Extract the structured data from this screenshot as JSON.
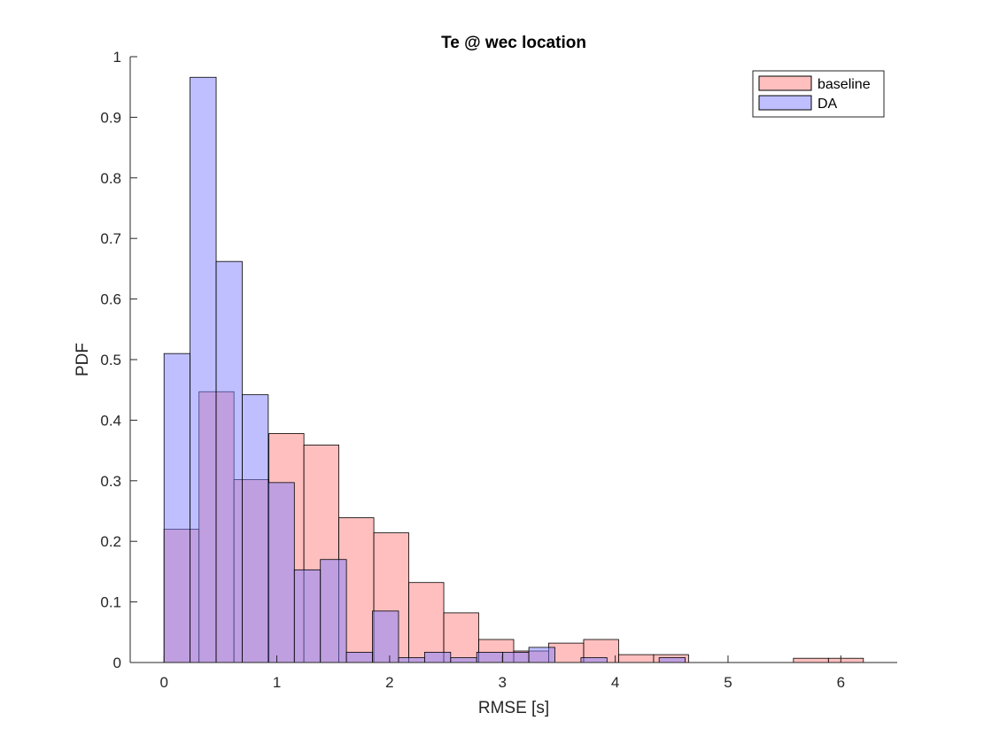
{
  "chart_data": {
    "type": "bar",
    "title": "Te @ wec location",
    "xlabel": "RMSE [s]",
    "ylabel": "PDF",
    "xlim": [
      -0.3,
      6.5
    ],
    "ylim": [
      0,
      1
    ],
    "xticks": [
      0,
      1,
      2,
      3,
      4,
      5,
      6
    ],
    "yticks": [
      0,
      0.1,
      0.2,
      0.3,
      0.4,
      0.5,
      0.6,
      0.7,
      0.8,
      0.9,
      1
    ],
    "grid": false,
    "legend_position": "top-right",
    "series": [
      {
        "name": "baseline",
        "color": "#ff8080",
        "opacity": 0.5,
        "bins": [
          {
            "x0": 0.0,
            "x1": 0.31,
            "value": 0.22
          },
          {
            "x0": 0.31,
            "x1": 0.62,
            "value": 0.447
          },
          {
            "x0": 0.62,
            "x1": 0.93,
            "value": 0.302
          },
          {
            "x0": 0.93,
            "x1": 1.24,
            "value": 0.378
          },
          {
            "x0": 1.24,
            "x1": 1.55,
            "value": 0.359
          },
          {
            "x0": 1.55,
            "x1": 1.86,
            "value": 0.239
          },
          {
            "x0": 1.86,
            "x1": 2.17,
            "value": 0.214
          },
          {
            "x0": 2.17,
            "x1": 2.48,
            "value": 0.132
          },
          {
            "x0": 2.48,
            "x1": 2.79,
            "value": 0.082
          },
          {
            "x0": 2.79,
            "x1": 3.1,
            "value": 0.038
          },
          {
            "x0": 3.1,
            "x1": 3.41,
            "value": 0.019
          },
          {
            "x0": 3.41,
            "x1": 3.72,
            "value": 0.032
          },
          {
            "x0": 3.72,
            "x1": 4.03,
            "value": 0.038
          },
          {
            "x0": 4.03,
            "x1": 4.34,
            "value": 0.013
          },
          {
            "x0": 4.34,
            "x1": 4.65,
            "value": 0.013
          },
          {
            "x0": 5.58,
            "x1": 5.89,
            "value": 0.007
          },
          {
            "x0": 5.89,
            "x1": 6.2,
            "value": 0.007
          }
        ]
      },
      {
        "name": "DA",
        "color": "#8080ff",
        "opacity": 0.5,
        "bins": [
          {
            "x0": 0.0,
            "x1": 0.231,
            "value": 0.51
          },
          {
            "x0": 0.231,
            "x1": 0.462,
            "value": 0.966
          },
          {
            "x0": 0.462,
            "x1": 0.693,
            "value": 0.662
          },
          {
            "x0": 0.693,
            "x1": 0.924,
            "value": 0.442
          },
          {
            "x0": 0.924,
            "x1": 1.155,
            "value": 0.297
          },
          {
            "x0": 1.155,
            "x1": 1.386,
            "value": 0.153
          },
          {
            "x0": 1.386,
            "x1": 1.617,
            "value": 0.17
          },
          {
            "x0": 1.617,
            "x1": 1.848,
            "value": 0.017
          },
          {
            "x0": 1.848,
            "x1": 2.079,
            "value": 0.085
          },
          {
            "x0": 2.079,
            "x1": 2.31,
            "value": 0.008
          },
          {
            "x0": 2.31,
            "x1": 2.541,
            "value": 0.017
          },
          {
            "x0": 2.541,
            "x1": 2.772,
            "value": 0.008
          },
          {
            "x0": 2.772,
            "x1": 3.003,
            "value": 0.017
          },
          {
            "x0": 3.003,
            "x1": 3.234,
            "value": 0.017
          },
          {
            "x0": 3.234,
            "x1": 3.465,
            "value": 0.025
          },
          {
            "x0": 3.465,
            "x1": 3.696,
            "value": 0.0
          },
          {
            "x0": 3.696,
            "x1": 3.927,
            "value": 0.008
          },
          {
            "x0": 3.927,
            "x1": 4.158,
            "value": 0.0
          },
          {
            "x0": 4.158,
            "x1": 4.389,
            "value": 0.0
          },
          {
            "x0": 4.389,
            "x1": 4.62,
            "value": 0.008
          }
        ]
      }
    ]
  }
}
